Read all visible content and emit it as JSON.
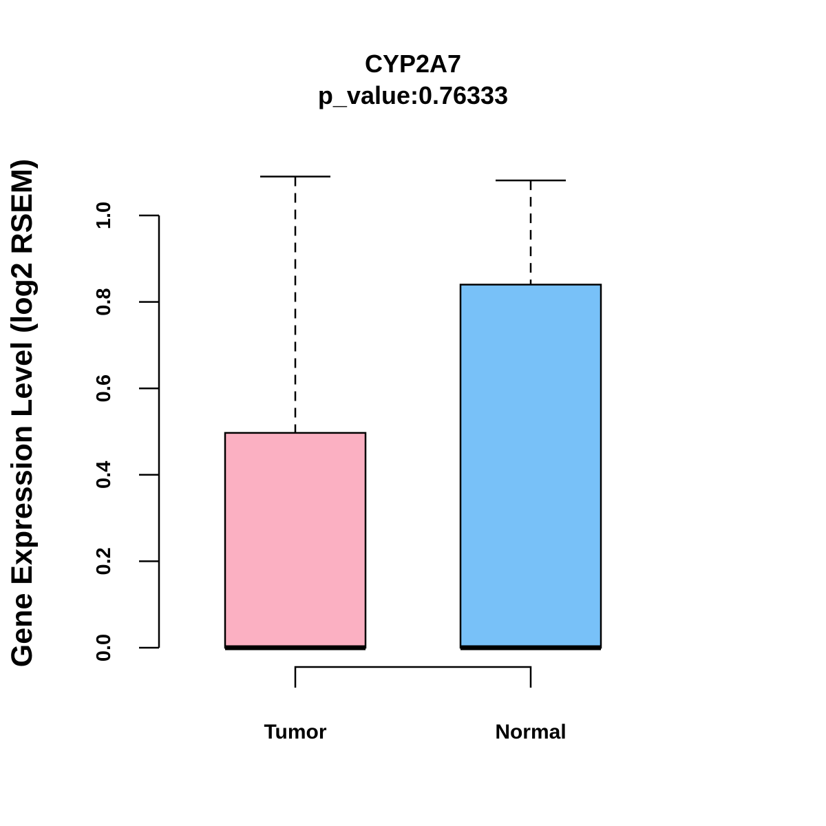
{
  "chart_data": {
    "type": "box",
    "title": "CYP2A7",
    "subtitle": "p_value:0.76333",
    "xlabel": "",
    "ylabel": "Gene Expression Level (log2 RSEM)",
    "ylim": [
      0,
      1.0
    ],
    "yticks": [
      "0.0",
      "0.2",
      "0.4",
      "0.6",
      "0.8",
      "1.0"
    ],
    "ytick_values": [
      0.0,
      0.2,
      0.4,
      0.6,
      0.8,
      1.0
    ],
    "categories": [
      "Tumor",
      "Normal"
    ],
    "boxes": [
      {
        "name": "Tumor",
        "min": 0.0,
        "q1": 0.0,
        "median": 0.0,
        "q3": 0.497,
        "max": 1.09,
        "color": "#FBB0C2"
      },
      {
        "name": "Normal",
        "min": 0.0,
        "q1": 0.0,
        "median": 0.0,
        "q3": 0.84,
        "max": 1.081,
        "color": "#78C1F8"
      }
    ],
    "comparison_bracket": [
      "Tumor",
      "Normal"
    ]
  }
}
